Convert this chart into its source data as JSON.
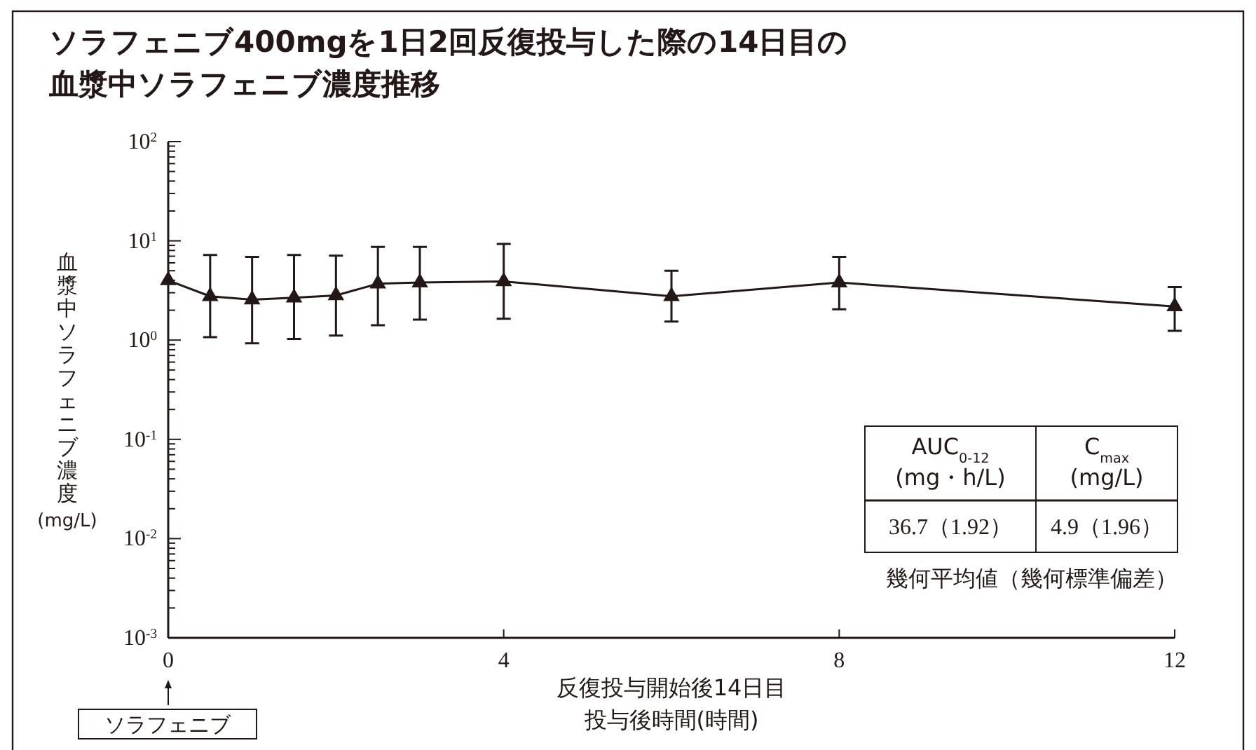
{
  "chart_data": {
    "type": "line",
    "title": "ソラフェニブ400mgを1日2回反復投与した際の14日目の血漿中ソラフェニブ濃度推移",
    "xlabel": "反復投与開始後14日目投与後時間(時間)",
    "ylabel": "血漿中ソラフェニブ濃度\n(mg/L)",
    "x": [
      0,
      0.5,
      1,
      1.5,
      2,
      2.5,
      3,
      4,
      6,
      8,
      12
    ],
    "series": [
      {
        "color": "#231815",
        "values": [
          4.0,
          2.76,
          2.56,
          2.67,
          2.82,
          3.7,
          3.8,
          3.9,
          2.76,
          3.8,
          2.18
        ],
        "errors": [
          null,
          [
            1.07,
            7.2
          ],
          [
            0.93,
            6.9
          ],
          [
            1.03,
            7.2
          ],
          [
            1.11,
            7.1
          ],
          [
            1.41,
            8.7
          ],
          [
            1.61,
            8.7
          ],
          [
            1.64,
            9.3
          ],
          [
            1.54,
            5.0
          ],
          [
            2.04,
            6.9
          ],
          [
            1.24,
            3.42
          ]
        ]
      }
    ],
    "log": "y",
    "marker": "triangle",
    "line_style": "solid",
    "grid": false,
    "xlim": [
      0,
      12
    ],
    "xticks": [
      0,
      4,
      8,
      12
    ],
    "ylim": [
      0.001,
      100
    ],
    "yticks": [
      {
        "value": 0.001,
        "label": "10$^{-3}$"
      },
      {
        "value": 0.002,
        "label": null
      },
      {
        "value": 0.003,
        "label": null
      },
      {
        "value": 0.004,
        "label": null
      },
      {
        "value": 0.005,
        "label": null
      },
      {
        "value": 0.006,
        "label": null
      },
      {
        "value": 0.007,
        "label": null
      },
      {
        "value": 0.008,
        "label": null
      },
      {
        "value": 0.009,
        "label": null
      },
      {
        "value": 0.01,
        "label": "10$^{-2}$"
      },
      {
        "value": 0.02,
        "label": null
      },
      {
        "value": 0.03,
        "label": null
      },
      {
        "value": 0.04,
        "label": null
      },
      {
        "value": 0.05,
        "label": null
      },
      {
        "value": 0.06,
        "label": null
      },
      {
        "value": 0.07,
        "label": null
      },
      {
        "value": 0.08,
        "label": null
      },
      {
        "value": 0.09,
        "label": null
      },
      {
        "value": 0.1,
        "label": "10$^{-1}$"
      },
      {
        "value": 0.2,
        "label": null
      },
      {
        "value": 0.3,
        "label": null
      },
      {
        "value": 0.4,
        "label": null
      },
      {
        "value": 0.5,
        "label": null
      },
      {
        "value": 0.6,
        "label": null
      },
      {
        "value": 0.7,
        "label": null
      },
      {
        "value": 0.8,
        "label": null
      },
      {
        "value": 0.9,
        "label": null
      },
      {
        "value": 1,
        "label": "10$^{0}$"
      },
      {
        "value": 2,
        "label": null
      },
      {
        "value": 3,
        "label": null
      },
      {
        "value": 4,
        "label": null
      },
      {
        "value": 5,
        "label": null
      },
      {
        "value": 6,
        "label": null
      },
      {
        "value": 7,
        "label": null
      },
      {
        "value": 8,
        "label": null
      },
      {
        "value": 9,
        "label": null
      },
      {
        "value": 10,
        "label": "10$^{1}$"
      },
      {
        "value": 20,
        "label": null
      },
      {
        "value": 30,
        "label": null
      },
      {
        "value": 40,
        "label": null
      },
      {
        "value": 50,
        "label": null
      },
      {
        "value": 60,
        "label": null
      },
      {
        "value": 70,
        "label": null
      },
      {
        "value": 80,
        "label": null
      },
      {
        "value": 90,
        "label": null
      },
      {
        "value": 100,
        "label": "10$^{2}$"
      }
    ],
    "annotations": [
      "AUC$_{0-12}$\n(mg・h/L)",
      "C$_{max}$\n(mg/L)",
      "36.7（1.92）",
      "4.9（1.96）",
      "幾何平均値（幾何標準偏差）",
      "ソラフェニブ"
    ]
  }
}
